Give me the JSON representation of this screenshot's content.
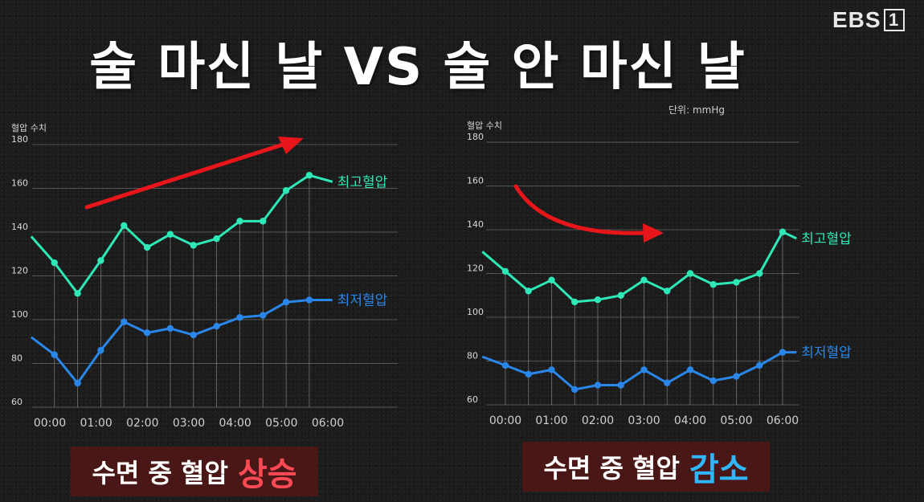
{
  "title": "술 마신 날 VS 술 안 마신 날",
  "logo": {
    "text": "EBS",
    "box": "1"
  },
  "unit": "단위: mmHg",
  "captions": [
    {
      "prefix": "수면 중  혈압",
      "highlight": "상승",
      "color": "#ff4a55"
    },
    {
      "prefix": "수면 중  혈압",
      "highlight": "감소",
      "color": "#2fb8ff"
    }
  ],
  "chart_data": [
    {
      "type": "line",
      "ylabel": "혈압 수치",
      "ylim": [
        60,
        180
      ],
      "yticks": [
        180,
        160,
        140,
        120,
        100,
        80,
        60
      ],
      "xticks": [
        "00:00",
        "01:00",
        "02:00",
        "03:00",
        "04:00",
        "05:00",
        "06:00"
      ],
      "x": [
        -0.4,
        0.1,
        0.6,
        1.1,
        1.6,
        2.1,
        2.6,
        3.1,
        3.6,
        4.1,
        4.6,
        5.1,
        5.6,
        6.1
      ],
      "series": [
        {
          "name": "최고혈압",
          "color": "#2ee8b8",
          "values": [
            138,
            126,
            112,
            127,
            143,
            133,
            139,
            134,
            137,
            145,
            145,
            159,
            166,
            163
          ],
          "marker_from": 1,
          "marker_to": 12
        },
        {
          "name": "최저혈압",
          "color": "#2a86e8",
          "values": [
            92,
            84,
            71,
            86,
            99,
            94,
            96,
            93,
            97,
            101,
            102,
            108,
            109,
            109
          ],
          "marker_from": 1,
          "marker_to": 12
        }
      ],
      "arrow": {
        "shape": "straight",
        "color": "#e8161b"
      }
    },
    {
      "type": "line",
      "ylabel": "혈압 수치",
      "ylim": [
        60,
        180
      ],
      "yticks": [
        180,
        160,
        140,
        120,
        100,
        80,
        60
      ],
      "xticks": [
        "00:00",
        "01:00",
        "02:00",
        "03:00",
        "04:00",
        "05:00",
        "06:00"
      ],
      "x": [
        -0.5,
        0.0,
        0.5,
        1.0,
        1.5,
        2.0,
        2.5,
        3.0,
        3.5,
        4.0,
        4.5,
        5.0,
        5.5,
        6.0,
        6.3
      ],
      "series": [
        {
          "name": "최고혈압",
          "color": "#2ee8b8",
          "values": [
            130,
            121,
            112,
            117,
            107,
            108,
            110,
            117,
            112,
            120,
            115,
            116,
            120,
            139,
            136
          ],
          "marker_from": 1,
          "marker_to": 13
        },
        {
          "name": "최저혈압",
          "color": "#2a86e8",
          "values": [
            82,
            78,
            74,
            76,
            67,
            69,
            69,
            76,
            70,
            76,
            71,
            73,
            78,
            84,
            84
          ],
          "marker_from": 1,
          "marker_to": 13
        }
      ],
      "arrow": {
        "shape": "curve",
        "color": "#e8161b"
      }
    }
  ]
}
